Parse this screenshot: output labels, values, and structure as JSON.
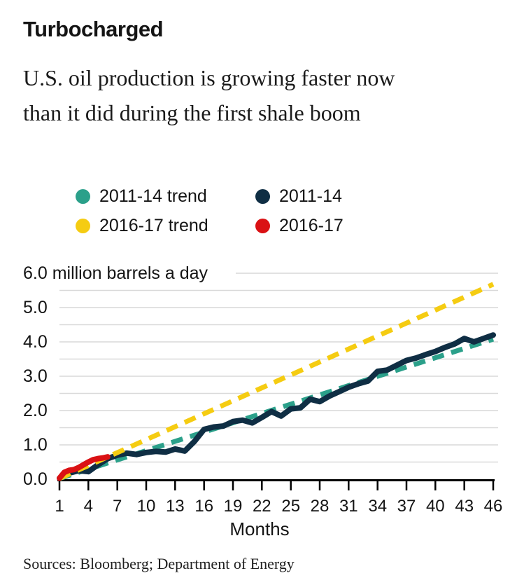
{
  "header": {
    "title": "Turbocharged",
    "subtitle_line1": "U.S. oil production is growing faster now",
    "subtitle_line2": "than it did during the first shale boom"
  },
  "legend": {
    "items": [
      {
        "label": "2011-14 trend",
        "color": "#2BA08A"
      },
      {
        "label": "2011-14",
        "color": "#0F2E44"
      },
      {
        "label": "2016-17 trend",
        "color": "#F5CC12"
      },
      {
        "label": "2016-17",
        "color": "#DA1114"
      }
    ]
  },
  "chart_data": {
    "type": "line",
    "title": "Turbocharged",
    "xlabel": "Months",
    "ylabel": "million barrels a day",
    "xlim": [
      1,
      46
    ],
    "ylim": [
      0,
      6
    ],
    "x_ticks": [
      1,
      4,
      7,
      10,
      13,
      16,
      19,
      22,
      25,
      28,
      31,
      34,
      37,
      40,
      43,
      46
    ],
    "y_ticks": [
      {
        "value": 0,
        "label": "0.0"
      },
      {
        "value": 1,
        "label": "1.0"
      },
      {
        "value": 2,
        "label": "2.0"
      },
      {
        "value": 3,
        "label": "3.0"
      },
      {
        "value": 4,
        "label": "4.0"
      },
      {
        "value": 5,
        "label": "5.0"
      },
      {
        "value": 6,
        "label": "6.0 million barrels a day"
      }
    ],
    "gridlines": {
      "step": 0.5,
      "color": "#d9d9d9"
    },
    "legend_position": "top",
    "series": [
      {
        "name": "2011-14 trend",
        "line": "dashed",
        "color": "#2BA08A",
        "x": [
          1,
          46
        ],
        "values": [
          0.02,
          4.08
        ]
      },
      {
        "name": "2011-14",
        "line": "solid",
        "color": "#0F2E44",
        "x": [
          1,
          2,
          3,
          4,
          5,
          6,
          7,
          8,
          9,
          10,
          11,
          12,
          13,
          14,
          15,
          16,
          17,
          18,
          19,
          20,
          21,
          22,
          23,
          24,
          25,
          26,
          27,
          28,
          29,
          30,
          31,
          32,
          33,
          34,
          35,
          36,
          37,
          38,
          39,
          40,
          41,
          42,
          43,
          44,
          45,
          46
        ],
        "values": [
          0.03,
          0.18,
          0.25,
          0.22,
          0.42,
          0.6,
          0.7,
          0.76,
          0.72,
          0.78,
          0.81,
          0.79,
          0.88,
          0.82,
          1.1,
          1.45,
          1.52,
          1.55,
          1.68,
          1.72,
          1.64,
          1.8,
          1.97,
          1.84,
          2.05,
          2.08,
          2.33,
          2.26,
          2.42,
          2.55,
          2.68,
          2.78,
          2.86,
          3.14,
          3.18,
          3.32,
          3.46,
          3.53,
          3.63,
          3.72,
          3.84,
          3.94,
          4.1,
          4.0,
          4.1,
          4.2
        ]
      },
      {
        "name": "2016-17 trend",
        "line": "dashed",
        "color": "#F5CC12",
        "x": [
          1,
          46
        ],
        "values": [
          0.02,
          5.68
        ]
      },
      {
        "name": "2016-17",
        "line": "solid",
        "color": "#DA1114",
        "x": [
          1,
          1.5,
          2,
          2.5,
          3,
          3.5,
          4,
          4.5,
          5,
          5.5,
          6
        ],
        "values": [
          0.03,
          0.2,
          0.26,
          0.28,
          0.34,
          0.42,
          0.5,
          0.57,
          0.6,
          0.62,
          0.65
        ]
      }
    ]
  },
  "footer": {
    "sources": "Sources: Bloomberg; Department of Energy"
  }
}
